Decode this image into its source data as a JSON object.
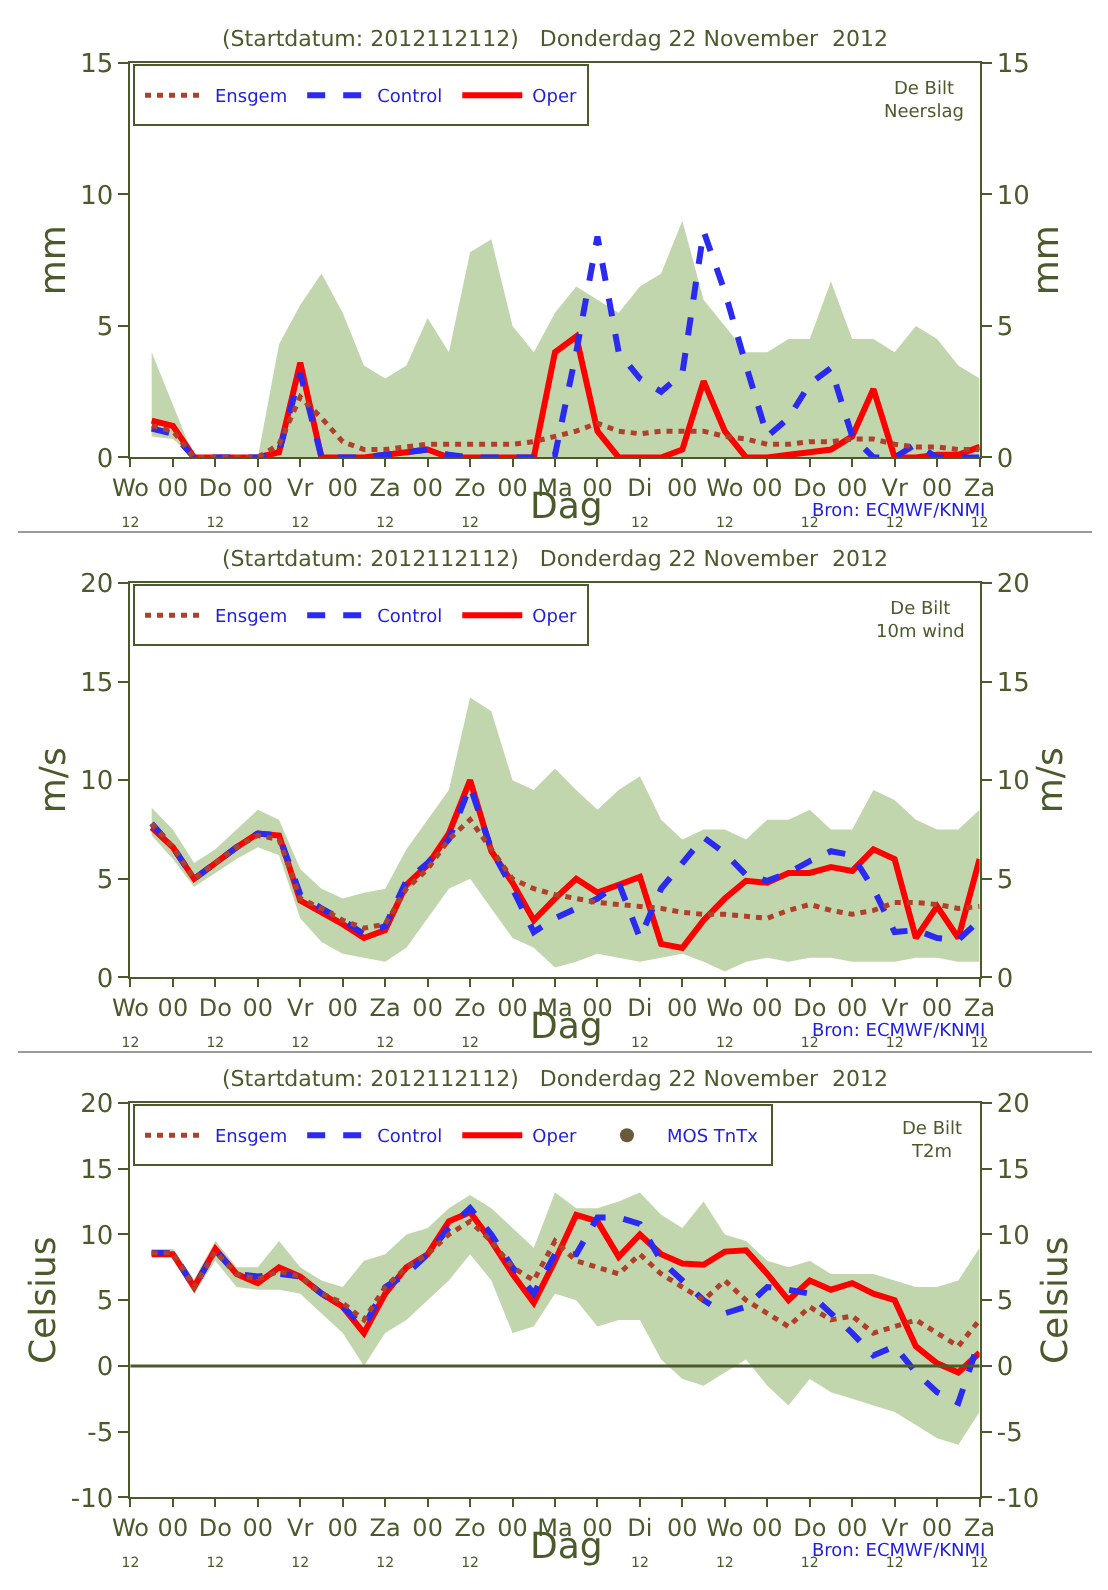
{
  "chart_data": [
    {
      "type": "line",
      "title": "(Startdatum: 2012112112)   Donderdag 22 November  2012",
      "xlabel": "Dag",
      "ylabel": "mm",
      "y2label": "mm",
      "legend": "top left",
      "annotations": [
        "De Bilt\nNeerslag",
        "Bron: ECMWF/KNMI"
      ],
      "x": [
        "2012-11-21T18:00",
        "2012-11-22T00:00",
        "2012-11-22T06:00",
        "2012-11-22T12:00",
        "2012-11-22T18:00",
        "2012-11-23T00:00",
        "2012-11-23T06:00",
        "2012-11-23T12:00",
        "2012-11-23T18:00",
        "2012-11-24T00:00",
        "2012-11-24T06:00",
        "2012-11-24T12:00",
        "2012-11-24T18:00",
        "2012-11-25T00:00",
        "2012-11-25T06:00",
        "2012-11-25T12:00",
        "2012-11-25T18:00",
        "2012-11-26T00:00",
        "2012-11-26T06:00",
        "2012-11-26T12:00",
        "2012-11-26T18:00",
        "2012-11-27T00:00",
        "2012-11-27T06:00",
        "2012-11-27T12:00",
        "2012-11-27T18:00",
        "2012-11-28T00:00",
        "2012-11-28T06:00",
        "2012-11-28T12:00",
        "2012-11-28T18:00",
        "2012-11-29T00:00",
        "2012-11-29T06:00",
        "2012-11-29T12:00",
        "2012-11-29T18:00",
        "2012-11-30T00:00",
        "2012-11-30T06:00",
        "2012-11-30T12:00",
        "2012-11-30T18:00",
        "2012-12-01T00:00",
        "2012-12-01T06:00",
        "2012-12-01T12:00"
      ],
      "xlim": [
        "2012-11-21T12:00",
        "2012-12-01T12:00"
      ],
      "xticks": [
        {
          "value": "2012-11-21T12:00",
          "label": "Wo\n12"
        },
        {
          "value": "2012-11-22T00:00",
          "label": "00"
        },
        {
          "value": "2012-11-22T12:00",
          "label": "Do\n12"
        },
        {
          "value": "2012-11-23T00:00",
          "label": "00"
        },
        {
          "value": "2012-11-23T12:00",
          "label": "Vr\n12"
        },
        {
          "value": "2012-11-24T00:00",
          "label": "00"
        },
        {
          "value": "2012-11-24T12:00",
          "label": "Za\n12"
        },
        {
          "value": "2012-11-25T00:00",
          "label": "00"
        },
        {
          "value": "2012-11-25T12:00",
          "label": "Zo\n12"
        },
        {
          "value": "2012-11-26T00:00",
          "label": "00"
        },
        {
          "value": "2012-11-26T12:00",
          "label": "Ma"
        },
        {
          "value": "2012-11-27T00:00",
          "label": "00"
        },
        {
          "value": "2012-11-27T12:00",
          "label": "Di\n12"
        },
        {
          "value": "2012-11-28T00:00",
          "label": "00"
        },
        {
          "value": "2012-11-28T12:00",
          "label": "Wo\n12"
        },
        {
          "value": "2012-11-29T00:00",
          "label": "00"
        },
        {
          "value": "2012-11-29T12:00",
          "label": "Do\n12"
        },
        {
          "value": "2012-11-30T00:00",
          "label": "00"
        },
        {
          "value": "2012-11-30T12:00",
          "label": "Vr\n12"
        },
        {
          "value": "2012-12-01T00:00",
          "label": "00"
        },
        {
          "value": "2012-12-01T12:00",
          "label": "Za\n12"
        }
      ],
      "ylim": [
        0,
        15
      ],
      "yticks": [
        0,
        5,
        10,
        15
      ],
      "y2lim": [
        0,
        15
      ],
      "y2ticks": [
        0,
        5,
        10,
        15
      ],
      "series": [
        {
          "name": "Ensgem",
          "color": "#b0402a",
          "line_style": "dotted",
          "values": [
            1.2,
            1.0,
            0,
            0,
            0,
            0,
            0.5,
            2.3,
            1.5,
            0.6,
            0.3,
            0.3,
            0.4,
            0.5,
            0.5,
            0.5,
            0.5,
            0.5,
            0.6,
            0.8,
            1.0,
            1.3,
            1.0,
            0.9,
            1.0,
            1.0,
            1.0,
            0.8,
            0.7,
            0.5,
            0.5,
            0.6,
            0.6,
            0.7,
            0.7,
            0.5,
            0.4,
            0.4,
            0.3,
            0.3
          ],
          "lower": [
            0.8,
            0.7,
            0,
            0,
            0,
            0,
            0,
            0,
            0,
            0,
            0,
            0,
            0,
            0,
            0,
            0,
            0,
            0,
            0,
            0,
            0,
            0,
            0,
            0,
            0,
            0,
            0,
            0,
            0,
            0,
            0,
            0,
            0,
            0,
            0,
            0,
            0,
            0,
            0,
            0
          ],
          "upper": [
            4.0,
            2.0,
            0,
            0,
            0,
            0,
            4.3,
            5.8,
            7.0,
            5.5,
            3.5,
            3.0,
            3.5,
            5.3,
            4.0,
            7.8,
            8.3,
            5.0,
            4.0,
            5.5,
            6.5,
            6.0,
            5.5,
            6.5,
            7.0,
            9.0,
            6.0,
            5.0,
            4.0,
            4.0,
            4.5,
            4.5,
            6.7,
            4.5,
            4.5,
            4.0,
            5.0,
            4.5,
            3.5,
            3.0
          ]
        },
        {
          "name": "Control",
          "color": "#2a2af0",
          "line_style": "dashed",
          "values": [
            1.1,
            0.9,
            0,
            0,
            0,
            0,
            0.2,
            3.2,
            0,
            0,
            0,
            0.1,
            0.2,
            0.3,
            0.1,
            0,
            0,
            0,
            0,
            0.1,
            4.0,
            8.4,
            4.0,
            3.0,
            2.5,
            3.2,
            8.6,
            6.3,
            3.5,
            0.8,
            1.5,
            2.8,
            3.4,
            0.8,
            0,
            0,
            0.5,
            0,
            0,
            0
          ]
        },
        {
          "name": "Oper",
          "color": "#ff0000",
          "line_style": "solid",
          "values": [
            1.4,
            1.2,
            0,
            0,
            0,
            0,
            0.2,
            3.6,
            0,
            0,
            0,
            0.1,
            0.2,
            0.3,
            0,
            0,
            0,
            0,
            0,
            4.0,
            4.6,
            1.0,
            0,
            0,
            0,
            0.3,
            2.9,
            1.0,
            0,
            0,
            0.1,
            0.2,
            0.3,
            0.8,
            2.6,
            0,
            0,
            0.1,
            0.1,
            0.4
          ]
        }
      ]
    },
    {
      "type": "line",
      "title": "(Startdatum: 2012112112)   Donderdag 22 November  2012",
      "xlabel": "Dag",
      "ylabel": "m/s",
      "y2label": "m/s",
      "legend": "top left",
      "annotations": [
        "De Bilt\n10m wind",
        "Bron: ECMWF/KNMI"
      ],
      "x": [
        "2012-11-21T18:00",
        "2012-11-22T00:00",
        "2012-11-22T06:00",
        "2012-11-22T12:00",
        "2012-11-22T18:00",
        "2012-11-23T00:00",
        "2012-11-23T06:00",
        "2012-11-23T12:00",
        "2012-11-23T18:00",
        "2012-11-24T00:00",
        "2012-11-24T06:00",
        "2012-11-24T12:00",
        "2012-11-24T18:00",
        "2012-11-25T00:00",
        "2012-11-25T06:00",
        "2012-11-25T12:00",
        "2012-11-25T18:00",
        "2012-11-26T00:00",
        "2012-11-26T06:00",
        "2012-11-26T12:00",
        "2012-11-26T18:00",
        "2012-11-27T00:00",
        "2012-11-27T06:00",
        "2012-11-27T12:00",
        "2012-11-27T18:00",
        "2012-11-28T00:00",
        "2012-11-28T06:00",
        "2012-11-28T12:00",
        "2012-11-28T18:00",
        "2012-11-29T00:00",
        "2012-11-29T06:00",
        "2012-11-29T12:00",
        "2012-11-29T18:00",
        "2012-11-30T00:00",
        "2012-11-30T06:00",
        "2012-11-30T12:00",
        "2012-11-30T18:00",
        "2012-12-01T00:00",
        "2012-12-01T06:00",
        "2012-12-01T12:00"
      ],
      "xlim": [
        "2012-11-21T12:00",
        "2012-12-01T12:00"
      ],
      "xticks": [
        {
          "value": "2012-11-21T12:00",
          "label": "Wo\n12"
        },
        {
          "value": "2012-11-22T00:00",
          "label": "00"
        },
        {
          "value": "2012-11-22T12:00",
          "label": "Do\n12"
        },
        {
          "value": "2012-11-23T00:00",
          "label": "00"
        },
        {
          "value": "2012-11-23T12:00",
          "label": "Vr\n12"
        },
        {
          "value": "2012-11-24T00:00",
          "label": "00"
        },
        {
          "value": "2012-11-24T12:00",
          "label": "Za\n12"
        },
        {
          "value": "2012-11-25T00:00",
          "label": "00"
        },
        {
          "value": "2012-11-25T12:00",
          "label": "Zo\n12"
        },
        {
          "value": "2012-11-26T00:00",
          "label": "00"
        },
        {
          "value": "2012-11-26T12:00",
          "label": "Ma"
        },
        {
          "value": "2012-11-27T00:00",
          "label": "00"
        },
        {
          "value": "2012-11-27T12:00",
          "label": "Di\n12"
        },
        {
          "value": "2012-11-28T00:00",
          "label": "00"
        },
        {
          "value": "2012-11-28T12:00",
          "label": "Wo\n12"
        },
        {
          "value": "2012-11-29T00:00",
          "label": "00"
        },
        {
          "value": "2012-11-29T12:00",
          "label": "Do\n12"
        },
        {
          "value": "2012-11-30T00:00",
          "label": "00"
        },
        {
          "value": "2012-11-30T12:00",
          "label": "Vr\n12"
        },
        {
          "value": "2012-12-01T00:00",
          "label": "00"
        },
        {
          "value": "2012-12-01T12:00",
          "label": "Za\n12"
        }
      ],
      "ylim": [
        0,
        20
      ],
      "yticks": [
        0,
        5,
        10,
        15,
        20
      ],
      "y2lim": [
        0,
        20
      ],
      "y2ticks": [
        0,
        5,
        10,
        15,
        20
      ],
      "series": [
        {
          "name": "Ensgem",
          "color": "#b0402a",
          "line_style": "dotted",
          "values": [
            7.8,
            6.6,
            5.0,
            5.8,
            6.6,
            7.2,
            7.0,
            4.0,
            3.5,
            2.9,
            2.5,
            2.7,
            4.5,
            5.5,
            7.0,
            8.0,
            6.5,
            5.0,
            4.5,
            4.2,
            4.0,
            3.8,
            3.7,
            3.6,
            3.5,
            3.3,
            3.2,
            3.2,
            3.1,
            3.0,
            3.4,
            3.7,
            3.4,
            3.2,
            3.4,
            3.8,
            3.8,
            3.7,
            3.5,
            3.6
          ],
          "lower": [
            7.2,
            6.0,
            4.6,
            5.3,
            6.0,
            6.6,
            6.2,
            3.0,
            1.8,
            1.2,
            1.0,
            0.8,
            1.5,
            3.0,
            4.5,
            5.0,
            3.5,
            2.0,
            1.5,
            0.5,
            0.8,
            1.2,
            1.0,
            0.8,
            1.0,
            1.2,
            0.8,
            0.3,
            0.8,
            1.0,
            0.8,
            1.0,
            1.0,
            0.8,
            0.8,
            0.8,
            1.0,
            1.0,
            0.8,
            0.8
          ],
          "upper": [
            8.6,
            7.5,
            5.8,
            6.5,
            7.5,
            8.5,
            8.0,
            5.5,
            4.5,
            4.0,
            4.3,
            4.5,
            6.5,
            8.0,
            9.5,
            14.2,
            13.5,
            10.0,
            9.5,
            10.6,
            9.5,
            8.5,
            9.5,
            10.2,
            8.0,
            7.0,
            7.5,
            7.5,
            7.0,
            8.0,
            8.0,
            8.5,
            7.5,
            7.5,
            9.5,
            9.0,
            8.0,
            7.5,
            7.5,
            8.5
          ]
        },
        {
          "name": "Control",
          "color": "#2a2af0",
          "line_style": "dashed",
          "values": [
            7.8,
            6.6,
            5.0,
            5.8,
            6.6,
            7.3,
            7.2,
            4.2,
            3.5,
            2.9,
            2.2,
            2.6,
            4.9,
            5.8,
            7.0,
            9.7,
            6.5,
            4.5,
            2.3,
            3.0,
            3.5,
            4.0,
            4.8,
            2.0,
            4.5,
            5.8,
            7.1,
            6.3,
            5.2,
            4.9,
            5.3,
            5.9,
            6.4,
            6.2,
            4.5,
            2.3,
            2.4,
            2.0,
            1.9,
            2.9
          ]
        },
        {
          "name": "Oper",
          "color": "#ff0000",
          "line_style": "solid",
          "values": [
            7.6,
            6.6,
            5.0,
            5.8,
            6.6,
            7.3,
            7.2,
            3.9,
            3.3,
            2.7,
            2.0,
            2.4,
            4.7,
            5.7,
            7.3,
            10.0,
            6.4,
            4.8,
            2.9,
            4.0,
            5.0,
            4.3,
            4.7,
            5.1,
            1.7,
            1.5,
            2.9,
            4.0,
            4.9,
            4.8,
            5.3,
            5.3,
            5.6,
            5.4,
            6.5,
            6.0,
            2.0,
            3.6,
            2.0,
            6.0
          ]
        }
      ]
    },
    {
      "type": "line",
      "title": "(Startdatum: 2012112112)   Donderdag 22 November  2012",
      "xlabel": "Dag",
      "ylabel": "Celsius",
      "y2label": "Celsius",
      "legend": "top left",
      "annotations": [
        "De Bilt\nT2m",
        "Bron: ECMWF/KNMI"
      ],
      "x": [
        "2012-11-21T18:00",
        "2012-11-22T00:00",
        "2012-11-22T06:00",
        "2012-11-22T12:00",
        "2012-11-22T18:00",
        "2012-11-23T00:00",
        "2012-11-23T06:00",
        "2012-11-23T12:00",
        "2012-11-23T18:00",
        "2012-11-24T00:00",
        "2012-11-24T06:00",
        "2012-11-24T12:00",
        "2012-11-24T18:00",
        "2012-11-25T00:00",
        "2012-11-25T06:00",
        "2012-11-25T12:00",
        "2012-11-25T18:00",
        "2012-11-26T00:00",
        "2012-11-26T06:00",
        "2012-11-26T12:00",
        "2012-11-26T18:00",
        "2012-11-27T00:00",
        "2012-11-27T06:00",
        "2012-11-27T12:00",
        "2012-11-27T18:00",
        "2012-11-28T00:00",
        "2012-11-28T06:00",
        "2012-11-28T12:00",
        "2012-11-28T18:00",
        "2012-11-29T00:00",
        "2012-11-29T06:00",
        "2012-11-29T12:00",
        "2012-11-29T18:00",
        "2012-11-30T00:00",
        "2012-11-30T06:00",
        "2012-11-30T12:00",
        "2012-11-30T18:00",
        "2012-12-01T00:00",
        "2012-12-01T06:00",
        "2012-12-01T12:00"
      ],
      "xlim": [
        "2012-11-21T12:00",
        "2012-12-01T12:00"
      ],
      "xticks": [
        {
          "value": "2012-11-21T12:00",
          "label": "Wo\n12"
        },
        {
          "value": "2012-11-22T00:00",
          "label": "00"
        },
        {
          "value": "2012-11-22T12:00",
          "label": "Do\n12"
        },
        {
          "value": "2012-11-23T00:00",
          "label": "00"
        },
        {
          "value": "2012-11-23T12:00",
          "label": "Vr\n12"
        },
        {
          "value": "2012-11-24T00:00",
          "label": "00"
        },
        {
          "value": "2012-11-24T12:00",
          "label": "Za\n12"
        },
        {
          "value": "2012-11-25T00:00",
          "label": "00"
        },
        {
          "value": "2012-11-25T12:00",
          "label": "Zo\n12"
        },
        {
          "value": "2012-11-26T00:00",
          "label": "00"
        },
        {
          "value": "2012-11-26T12:00",
          "label": "Ma"
        },
        {
          "value": "2012-11-27T00:00",
          "label": "00"
        },
        {
          "value": "2012-11-27T12:00",
          "label": "Di\n12"
        },
        {
          "value": "2012-11-28T00:00",
          "label": "00"
        },
        {
          "value": "2012-11-28T12:00",
          "label": "Wo\n12"
        },
        {
          "value": "2012-11-29T00:00",
          "label": "00"
        },
        {
          "value": "2012-11-29T12:00",
          "label": "Do\n12"
        },
        {
          "value": "2012-11-30T00:00",
          "label": "00"
        },
        {
          "value": "2012-11-30T12:00",
          "label": "Vr\n12"
        },
        {
          "value": "2012-12-01T00:00",
          "label": "00"
        },
        {
          "value": "2012-12-01T12:00",
          "label": "Za\n12"
        }
      ],
      "ylim": [
        -10,
        20
      ],
      "yticks": [
        -10,
        -5,
        0,
        5,
        10,
        15,
        20
      ],
      "y2lim": [
        -10,
        20
      ],
      "y2ticks": [
        -10,
        -5,
        0,
        5,
        10,
        15,
        20
      ],
      "ref_lines": [
        {
          "axis": "y",
          "value": 0,
          "color": "#4a5a2a"
        }
      ],
      "series": [
        {
          "name": "Ensgem",
          "color": "#b0402a",
          "line_style": "dotted",
          "values": [
            8.6,
            8.6,
            6.0,
            8.7,
            7.0,
            6.6,
            7.2,
            6.8,
            5.5,
            4.8,
            3.5,
            6.0,
            7.5,
            8.5,
            10.0,
            11.0,
            9.5,
            7.5,
            6.5,
            9.5,
            8.0,
            7.5,
            7.0,
            8.5,
            7.0,
            6.0,
            5.0,
            6.5,
            5.0,
            4.0,
            3.0,
            4.5,
            3.5,
            3.8,
            2.5,
            3.0,
            3.5,
            2.5,
            1.5,
            3.5
          ],
          "lower": [
            8.3,
            8.3,
            5.5,
            8.0,
            6.0,
            5.8,
            5.8,
            5.5,
            4.0,
            2.5,
            0.0,
            2.5,
            3.5,
            5.0,
            6.5,
            8.5,
            6.5,
            2.5,
            3.0,
            5.5,
            5.0,
            3.0,
            3.5,
            3.5,
            0.5,
            -1.0,
            -1.5,
            -0.5,
            0.5,
            -1.5,
            -3.0,
            -1.0,
            -2.0,
            -2.5,
            -3.0,
            -3.5,
            -4.5,
            -5.5,
            -6.0,
            -3.5
          ],
          "upper": [
            8.9,
            8.9,
            6.6,
            9.5,
            7.5,
            7.5,
            9.5,
            7.5,
            6.5,
            6.0,
            8.0,
            8.5,
            10.0,
            10.5,
            12.0,
            13.0,
            12.0,
            10.5,
            9.0,
            13.2,
            12.0,
            12.0,
            12.5,
            13.2,
            11.5,
            10.5,
            12.5,
            10.0,
            9.5,
            8.0,
            7.5,
            8.0,
            7.0,
            7.0,
            7.0,
            6.5,
            6.0,
            6.0,
            6.5,
            9.0
          ]
        },
        {
          "name": "Control",
          "color": "#2a2af0",
          "line_style": "dashed",
          "values": [
            8.6,
            8.6,
            6.0,
            8.8,
            7.0,
            6.8,
            7.0,
            6.8,
            5.5,
            4.5,
            3.0,
            6.0,
            7.0,
            8.5,
            10.5,
            12.0,
            10.0,
            7.5,
            5.5,
            8.5,
            8.5,
            11.3,
            11.3,
            10.8,
            8.0,
            6.5,
            5.0,
            4.0,
            4.5,
            6.0,
            5.8,
            5.5,
            4.0,
            2.5,
            0.8,
            1.5,
            -0.5,
            -2.0,
            -2.8,
            2.0
          ]
        },
        {
          "name": "Oper",
          "color": "#ff0000",
          "line_style": "solid",
          "values": [
            8.5,
            8.5,
            6.0,
            8.9,
            7.0,
            6.3,
            7.5,
            6.8,
            5.5,
            4.5,
            2.5,
            5.5,
            7.5,
            8.5,
            11.0,
            11.7,
            9.5,
            7.0,
            4.8,
            8.0,
            11.5,
            11.0,
            8.3,
            10.0,
            8.5,
            7.8,
            7.7,
            8.7,
            8.8,
            7.0,
            5.0,
            6.5,
            5.8,
            6.3,
            5.5,
            5.0,
            1.5,
            0.2,
            -0.5,
            1.0
          ]
        },
        {
          "name": "MOS TnTx",
          "color": "#6b5a3a",
          "type": "scatter",
          "marker": "circle",
          "values": [
            null,
            null,
            null,
            null,
            null,
            null,
            null,
            null,
            null,
            null,
            null,
            null,
            null,
            null,
            null,
            null,
            null,
            null,
            null,
            null,
            null,
            null,
            null,
            null,
            null,
            null,
            null,
            null,
            null,
            null,
            null,
            null,
            null,
            null,
            null,
            null,
            null,
            null,
            null,
            null
          ]
        }
      ]
    }
  ]
}
